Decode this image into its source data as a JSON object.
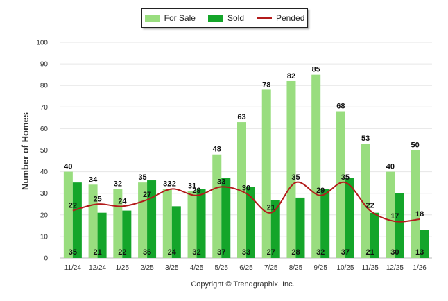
{
  "chart_data": {
    "type": "bar",
    "ylabel": "Number of Homes",
    "ylim": [
      0,
      100
    ],
    "yticks": [
      0,
      10,
      20,
      30,
      40,
      50,
      60,
      70,
      80,
      90,
      100
    ],
    "categories": [
      "11/24",
      "12/24",
      "1/25",
      "2/25",
      "3/25",
      "4/25",
      "5/25",
      "6/25",
      "7/25",
      "8/25",
      "9/25",
      "10/25",
      "11/25",
      "12/25",
      "1/26"
    ],
    "series": [
      {
        "name": "For Sale",
        "kind": "bar",
        "color": "#99dd7f",
        "values": [
          40,
          34,
          32,
          35,
          32,
          31,
          48,
          63,
          78,
          82,
          85,
          68,
          53,
          40,
          50
        ]
      },
      {
        "name": "Sold",
        "kind": "bar",
        "color": "#14a52a",
        "values": [
          35,
          21,
          22,
          36,
          24,
          32,
          37,
          33,
          27,
          28,
          32,
          37,
          21,
          30,
          13
        ]
      },
      {
        "name": "Pended",
        "kind": "line",
        "color": "#b31b1b",
        "values": [
          22,
          25,
          24,
          27,
          32,
          29,
          33,
          30,
          21,
          35,
          29,
          35,
          22,
          17,
          18
        ]
      }
    ],
    "legend": "top-center",
    "footer": "Copyright © Trendgraphix, Inc."
  }
}
